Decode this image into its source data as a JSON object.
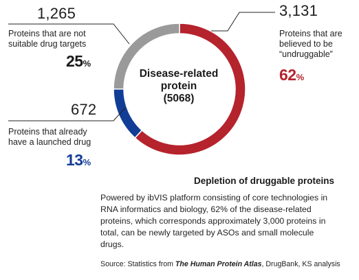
{
  "chart_data": {
    "type": "pie",
    "center_label": {
      "line1": "Disease-related",
      "line2": "protein",
      "total": "(5068)"
    },
    "slices": [
      {
        "count": "3,131",
        "value": 3131,
        "percent_num": "62",
        "percent_sign": "%",
        "desc_lines": [
          "Proteins that are",
          "believed to be",
          "“undruggable”"
        ],
        "color": "#b5232c"
      },
      {
        "count": "672",
        "value": 672,
        "percent_num": "13",
        "percent_sign": "%",
        "desc_lines": [
          "Proteins that already",
          "have a launched drug"
        ],
        "color": "#123d96"
      },
      {
        "count": "1,265",
        "value": 1265,
        "percent_num": "25",
        "percent_sign": "%",
        "desc_lines": [
          "Proteins that are not",
          "suitable drug targets"
        ],
        "color": "#9a9a9a"
      }
    ]
  },
  "section_title": "Depletion of druggable proteins",
  "body_lines": [
    "Powered by ibVIS platform consisting of core technologies in",
    "RNA informatics and biology, 62% of the disease-related",
    "proteins, which corresponds approximately 3,000 proteins in",
    "total, can be newly targeted by ASOs and small molecule",
    "drugs."
  ],
  "source": {
    "prefix": "Source: Statistics from ",
    "emphasis": "The Human Protein Atlas",
    "suffix": ", DrugBank, KS analysis"
  }
}
